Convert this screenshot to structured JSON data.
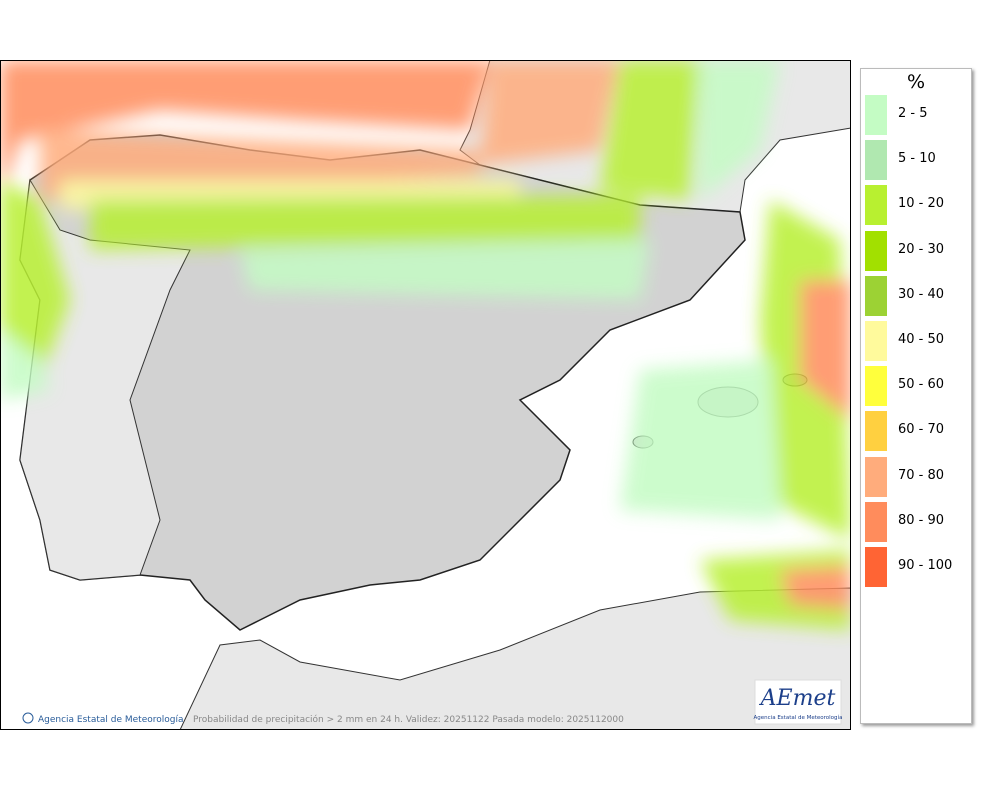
{
  "legend": {
    "title": "%",
    "items": [
      {
        "label": "2 - 5",
        "color": "#c4fcc4"
      },
      {
        "label": "5 - 10",
        "color": "#b0e8b0"
      },
      {
        "label": "10 - 20",
        "color": "#b8f030"
      },
      {
        "label": "20 - 30",
        "color": "#a2e000"
      },
      {
        "label": "30 - 40",
        "color": "#9cd234"
      },
      {
        "label": "40 - 50",
        "color": "#fffa9c"
      },
      {
        "label": "50 - 60",
        "color": "#ffff3c"
      },
      {
        "label": "60 - 70",
        "color": "#ffd040"
      },
      {
        "label": "70 - 80",
        "color": "#ffac7c"
      },
      {
        "label": "80 - 90",
        "color": "#ff8c5c"
      },
      {
        "label": "90 - 100",
        "color": "#ff6434"
      }
    ]
  },
  "footer": {
    "credit": "Agencia Estatal de Meteorología",
    "caption": "Probabilidad de precipitación > 2 mm en 24 h. Validez: 20251122 Pasada modelo: 2025112000"
  },
  "logo": {
    "name": "AEmet",
    "subtitle": "Agencia Estatal de Meteorología"
  }
}
